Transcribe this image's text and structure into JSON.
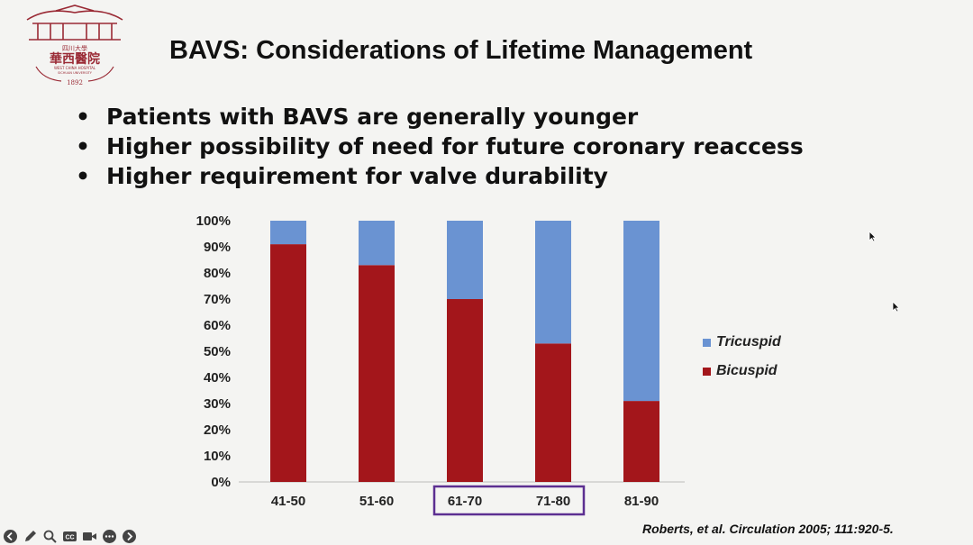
{
  "slide": {
    "title": "BAVS: Considerations of Lifetime Management",
    "bullets": [
      "Patients with BAVS are generally younger",
      "Higher possibility of need for future coronary reaccess",
      "Higher requirement for valve durability"
    ],
    "citation": "Roberts, et al. Circulation 2005; 111:920-5.",
    "logo": {
      "top_text": "四川大學",
      "main_text": "華西醫院",
      "sub_text": "WEST CHINA HOSPITAL",
      "sub_text2": "SICHUAN UNIVERSITY",
      "year": "1892"
    }
  },
  "colors": {
    "bicuspid": "#a3161b",
    "tricuspid": "#6a93d2",
    "highlight_box": "#5c2f91",
    "background": "#f4f4f2"
  },
  "chart_data": {
    "type": "bar",
    "stacked": true,
    "categories": [
      "41-50",
      "51-60",
      "61-70",
      "71-80",
      "81-90"
    ],
    "series": [
      {
        "name": "Bicuspid",
        "values": [
          91,
          83,
          70,
          53,
          31
        ]
      },
      {
        "name": "Tricuspid",
        "values": [
          9,
          17,
          30,
          47,
          69
        ]
      }
    ],
    "yticks": [
      "0%",
      "10%",
      "20%",
      "30%",
      "40%",
      "50%",
      "60%",
      "70%",
      "80%",
      "90%",
      "100%"
    ],
    "ylim": [
      0,
      100
    ],
    "grid": false,
    "legend_position": "right",
    "legend": [
      "Tricuspid",
      "Bicuspid"
    ],
    "highlighted_categories": [
      "61-70",
      "71-80"
    ]
  },
  "toolbar": {
    "icons": [
      "back-icon",
      "pen-icon",
      "zoom-icon",
      "captions-icon",
      "video-icon",
      "more-icon",
      "forward-icon"
    ]
  }
}
